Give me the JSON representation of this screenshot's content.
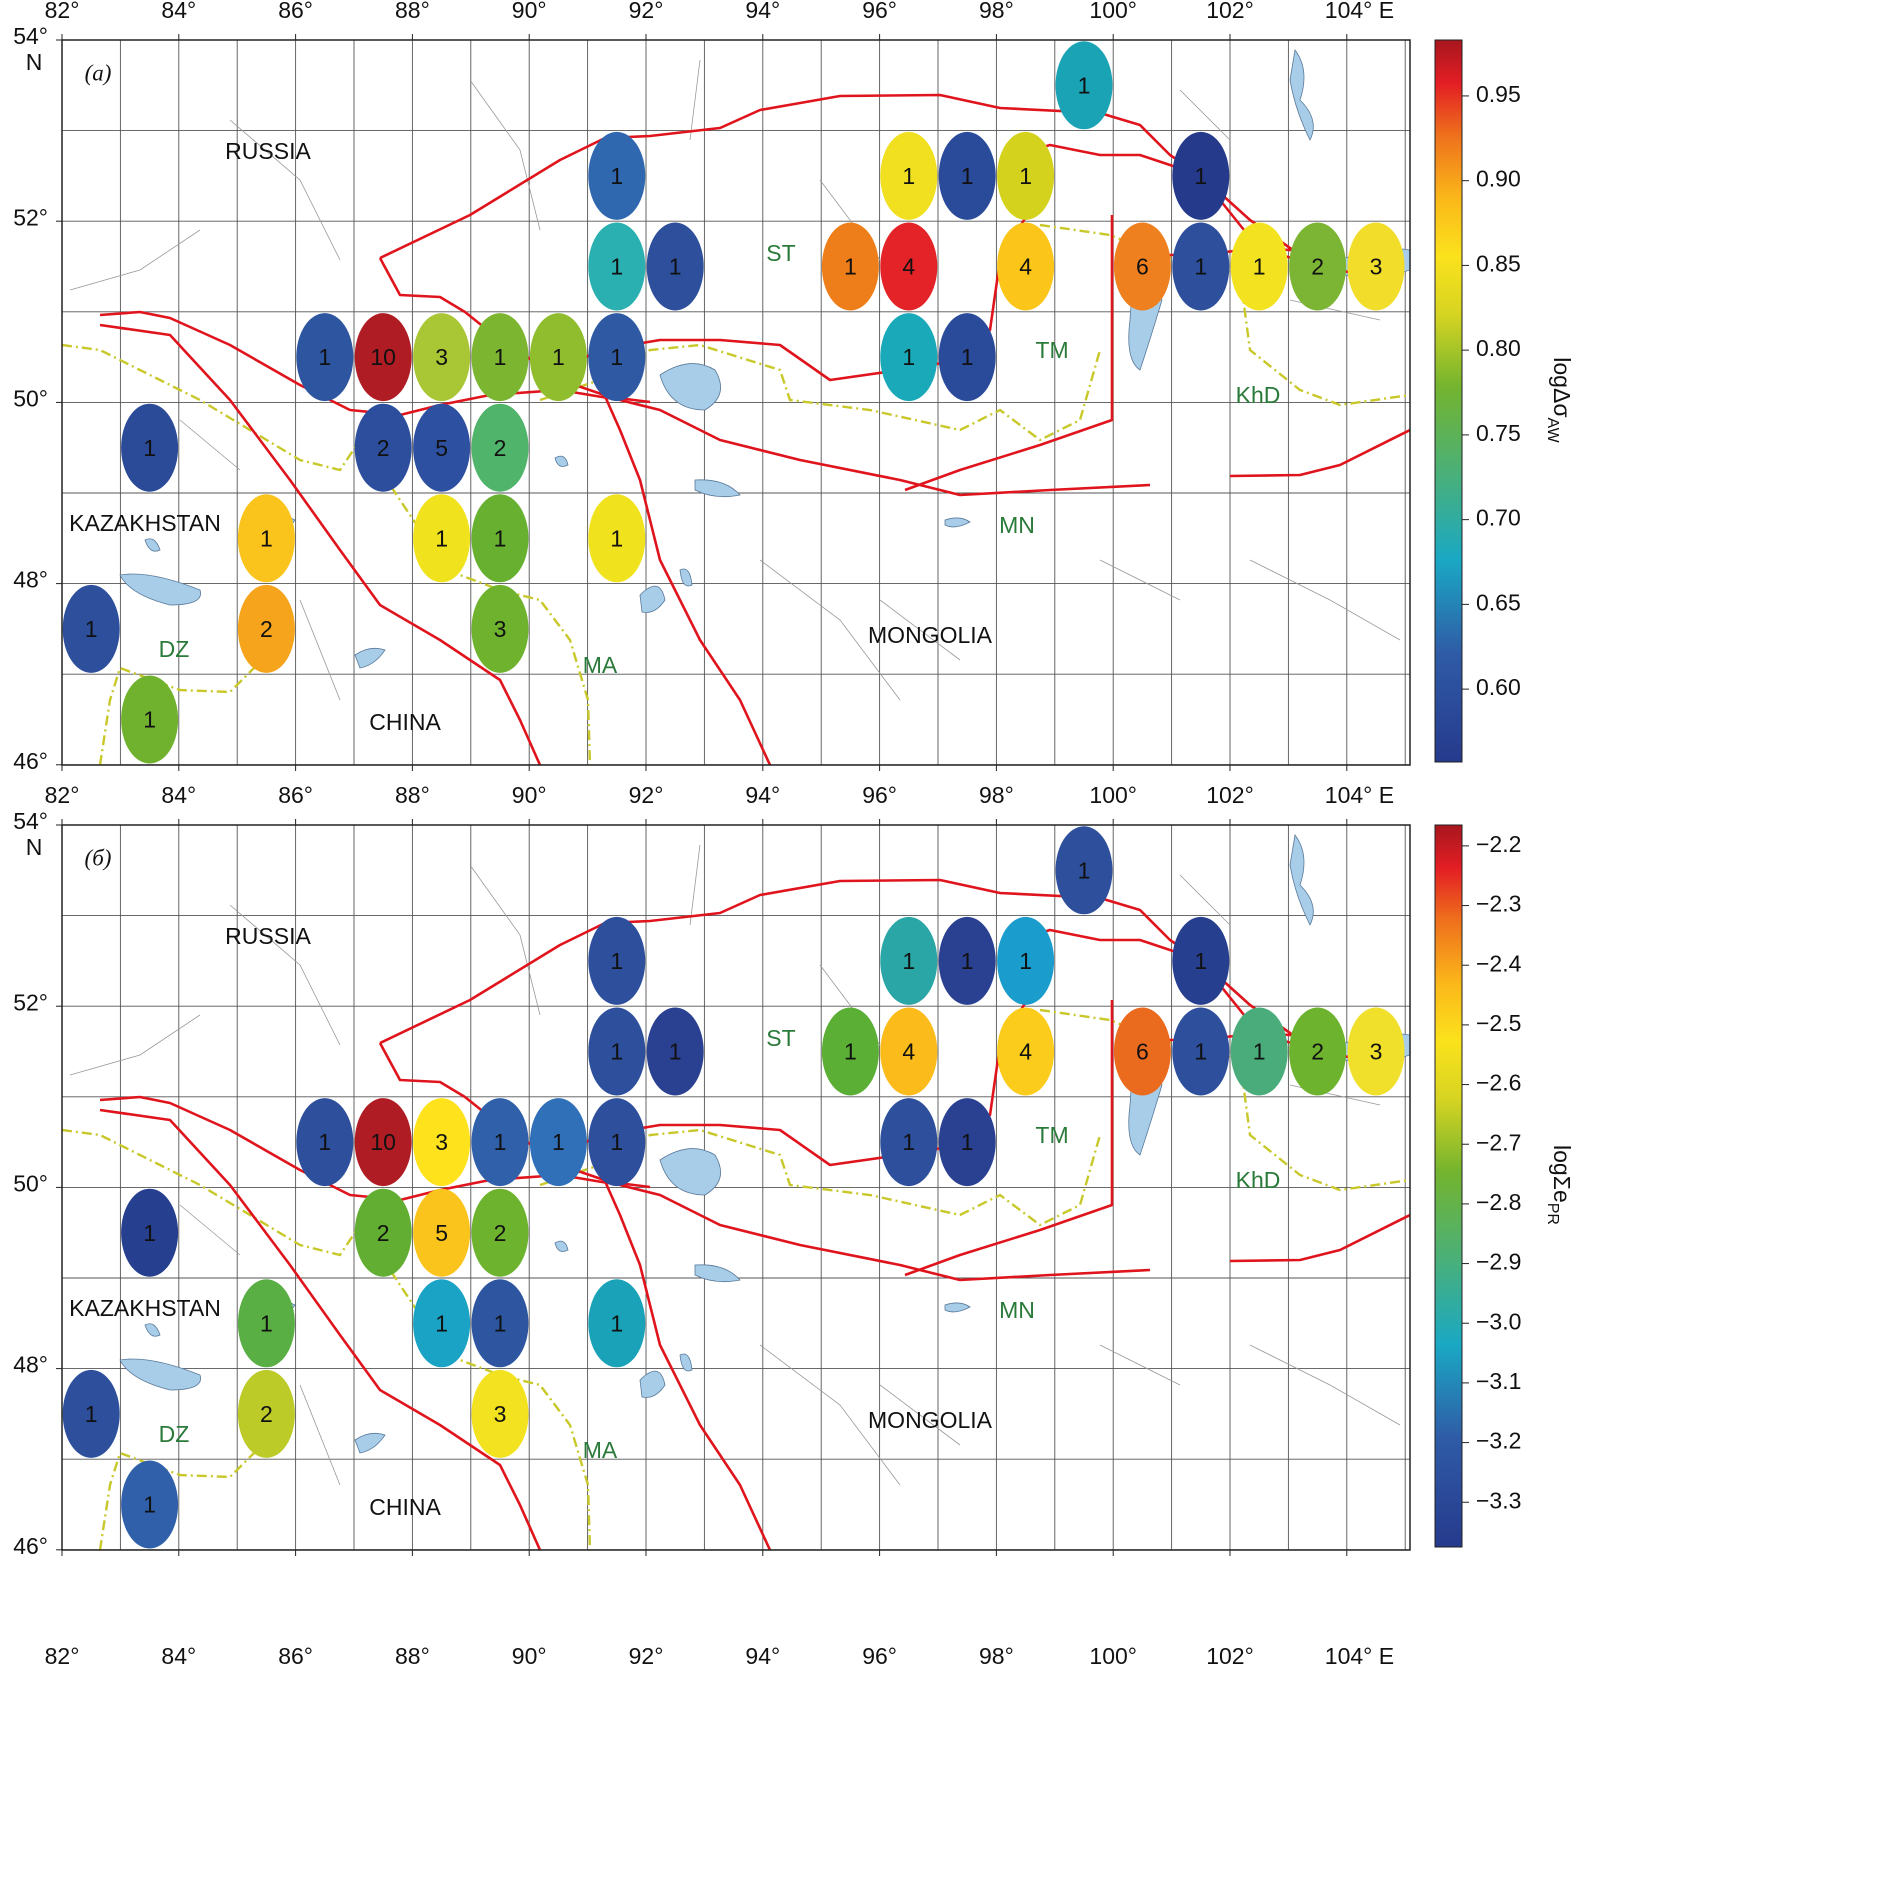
{
  "axes": {
    "lon_ticks": [
      {
        "value": 82,
        "label": "82°"
      },
      {
        "value": 84,
        "label": "84°"
      },
      {
        "value": 86,
        "label": "86°"
      },
      {
        "value": 88,
        "label": "88°"
      },
      {
        "value": 90,
        "label": "90°"
      },
      {
        "value": 92,
        "label": "92°"
      },
      {
        "value": 94,
        "label": "94°"
      },
      {
        "value": 96,
        "label": "96°"
      },
      {
        "value": 98,
        "label": "98°"
      },
      {
        "value": 100,
        "label": "100°"
      },
      {
        "value": 102,
        "label": "102°"
      },
      {
        "value": 104,
        "label": "104° E"
      }
    ],
    "lat_ticks": [
      {
        "value": 46,
        "label": "46°"
      },
      {
        "value": 48,
        "label": "48°"
      },
      {
        "value": 50,
        "label": "50°"
      },
      {
        "value": 52,
        "label": "52°"
      },
      {
        "value": 54,
        "label": "54°"
      }
    ],
    "north": "N"
  },
  "places": [
    "RUSSIA",
    "KAZAKHSTAN",
    "CHINA",
    "MONGOLIA"
  ],
  "regions": [
    "ST",
    "TM",
    "KhD",
    "MN",
    "DZ",
    "MA"
  ],
  "panels": [
    {
      "label": "(a)",
      "colorbar": {
        "title": "logΔσ",
        "subscript": "AW",
        "lim": [
          0.557,
          0.983
        ],
        "ticks": [
          {
            "value": 0.6,
            "label": "0.60"
          },
          {
            "value": 0.65,
            "label": "0.65"
          },
          {
            "value": 0.7,
            "label": "0.70"
          },
          {
            "value": 0.75,
            "label": "0.75"
          },
          {
            "value": 0.8,
            "label": "0.80"
          },
          {
            "value": 0.85,
            "label": "0.85"
          },
          {
            "value": 0.9,
            "label": "0.90"
          },
          {
            "value": 0.95,
            "label": "0.95"
          }
        ]
      },
      "cells": [
        {
          "lon": 99.5,
          "lat": 53.5,
          "count": 1,
          "color": "#1aa3b5"
        },
        {
          "lon": 91.5,
          "lat": 52.5,
          "count": 1,
          "color": "#3068b0"
        },
        {
          "lon": 96.5,
          "lat": 52.5,
          "count": 1,
          "color": "#f0e020"
        },
        {
          "lon": 97.5,
          "lat": 52.5,
          "count": 1,
          "color": "#2a4a9a"
        },
        {
          "lon": 98.5,
          "lat": 52.5,
          "count": 1,
          "color": "#d4d21c"
        },
        {
          "lon": 101.5,
          "lat": 52.5,
          "count": 1,
          "color": "#253a8a"
        },
        {
          "lon": 91.5,
          "lat": 51.5,
          "count": 1,
          "color": "#2ab0b0"
        },
        {
          "lon": 92.5,
          "lat": 51.5,
          "count": 1,
          "color": "#2d4f9c"
        },
        {
          "lon": 95.5,
          "lat": 51.5,
          "count": 1,
          "color": "#ee7e1a"
        },
        {
          "lon": 96.5,
          "lat": 51.5,
          "count": 4,
          "color": "#e42328"
        },
        {
          "lon": 98.5,
          "lat": 51.5,
          "count": 4,
          "color": "#fbc51a"
        },
        {
          "lon": 100.5,
          "lat": 51.5,
          "count": 6,
          "color": "#ee8020"
        },
        {
          "lon": 101.5,
          "lat": 51.5,
          "count": 1,
          "color": "#2d4f9c"
        },
        {
          "lon": 102.5,
          "lat": 51.5,
          "count": 1,
          "color": "#f3e21f"
        },
        {
          "lon": 103.5,
          "lat": 51.5,
          "count": 2,
          "color": "#7cb534"
        },
        {
          "lon": 104.5,
          "lat": 51.5,
          "count": 3,
          "color": "#f1dd2a"
        },
        {
          "lon": 86.5,
          "lat": 50.5,
          "count": 1,
          "color": "#2d55a0"
        },
        {
          "lon": 87.5,
          "lat": 50.5,
          "count": 10,
          "color": "#b01c24"
        },
        {
          "lon": 88.5,
          "lat": 50.5,
          "count": 3,
          "color": "#a9c634"
        },
        {
          "lon": 89.5,
          "lat": 50.5,
          "count": 1,
          "color": "#7cb530"
        },
        {
          "lon": 90.5,
          "lat": 50.5,
          "count": 1,
          "color": "#8fbd2e"
        },
        {
          "lon": 91.5,
          "lat": 50.5,
          "count": 1,
          "color": "#2f5aa3"
        },
        {
          "lon": 96.5,
          "lat": 50.5,
          "count": 1,
          "color": "#1aa9b8"
        },
        {
          "lon": 97.5,
          "lat": 50.5,
          "count": 1,
          "color": "#2a4a9a"
        },
        {
          "lon": 83.5,
          "lat": 49.5,
          "count": 1,
          "color": "#2b4a98"
        },
        {
          "lon": 87.5,
          "lat": 49.5,
          "count": 2,
          "color": "#2c4e9c"
        },
        {
          "lon": 88.5,
          "lat": 49.5,
          "count": 5,
          "color": "#2d50a0"
        },
        {
          "lon": 89.5,
          "lat": 49.5,
          "count": 2,
          "color": "#50b46a"
        },
        {
          "lon": 85.5,
          "lat": 48.5,
          "count": 1,
          "color": "#fbc41c"
        },
        {
          "lon": 88.5,
          "lat": 48.5,
          "count": 1,
          "color": "#f0e21c"
        },
        {
          "lon": 89.5,
          "lat": 48.5,
          "count": 1,
          "color": "#68b030"
        },
        {
          "lon": 91.5,
          "lat": 48.5,
          "count": 1,
          "color": "#f0e21c"
        },
        {
          "lon": 82.5,
          "lat": 47.5,
          "count": 1,
          "color": "#2d4f9c"
        },
        {
          "lon": 85.5,
          "lat": 47.5,
          "count": 2,
          "color": "#f6a41c"
        },
        {
          "lon": 89.5,
          "lat": 47.5,
          "count": 3,
          "color": "#6fb22e"
        },
        {
          "lon": 83.5,
          "lat": 46.5,
          "count": 1,
          "color": "#70b22e"
        }
      ]
    },
    {
      "label": "(б)",
      "colorbar": {
        "title": "logΣe",
        "subscript": "PR",
        "lim": [
          -3.375,
          -2.165
        ],
        "ticks": [
          {
            "value": -3.3,
            "label": "−3.3"
          },
          {
            "value": -3.2,
            "label": "−3.2"
          },
          {
            "value": -3.1,
            "label": "−3.1"
          },
          {
            "value": -3.0,
            "label": "−3.0"
          },
          {
            "value": -2.9,
            "label": "−2.9"
          },
          {
            "value": -2.8,
            "label": "−2.8"
          },
          {
            "value": -2.7,
            "label": "−2.7"
          },
          {
            "value": -2.6,
            "label": "−2.6"
          },
          {
            "value": -2.5,
            "label": "−2.5"
          },
          {
            "value": -2.4,
            "label": "−2.4"
          },
          {
            "value": -2.3,
            "label": "−2.3"
          },
          {
            "value": -2.2,
            "label": "−2.2"
          }
        ]
      },
      "cells": [
        {
          "lon": 99.5,
          "lat": 53.5,
          "count": 1,
          "color": "#2d4f9c"
        },
        {
          "lon": 91.5,
          "lat": 52.5,
          "count": 1,
          "color": "#2d4f9c"
        },
        {
          "lon": 96.5,
          "lat": 52.5,
          "count": 1,
          "color": "#2aa6a6"
        },
        {
          "lon": 97.5,
          "lat": 52.5,
          "count": 1,
          "color": "#2a4090"
        },
        {
          "lon": 98.5,
          "lat": 52.5,
          "count": 1,
          "color": "#1a9ccc"
        },
        {
          "lon": 101.5,
          "lat": 52.5,
          "count": 1,
          "color": "#263f8e"
        },
        {
          "lon": 91.5,
          "lat": 51.5,
          "count": 1,
          "color": "#2d4f9c"
        },
        {
          "lon": 92.5,
          "lat": 51.5,
          "count": 1,
          "color": "#2a4090"
        },
        {
          "lon": 95.5,
          "lat": 51.5,
          "count": 1,
          "color": "#5aaf34"
        },
        {
          "lon": 96.5,
          "lat": 51.5,
          "count": 4,
          "color": "#fbbb1a"
        },
        {
          "lon": 98.5,
          "lat": 51.5,
          "count": 4,
          "color": "#fbcc1c"
        },
        {
          "lon": 100.5,
          "lat": 51.5,
          "count": 6,
          "color": "#ea6a1e"
        },
        {
          "lon": 101.5,
          "lat": 51.5,
          "count": 1,
          "color": "#2d4f9c"
        },
        {
          "lon": 102.5,
          "lat": 51.5,
          "count": 1,
          "color": "#4aac7a"
        },
        {
          "lon": 103.5,
          "lat": 51.5,
          "count": 2,
          "color": "#6db32e"
        },
        {
          "lon": 104.5,
          "lat": 51.5,
          "count": 3,
          "color": "#f0e02c"
        },
        {
          "lon": 86.5,
          "lat": 50.5,
          "count": 1,
          "color": "#2d4f9c"
        },
        {
          "lon": 87.5,
          "lat": 50.5,
          "count": 10,
          "color": "#b01c24"
        },
        {
          "lon": 88.5,
          "lat": 50.5,
          "count": 3,
          "color": "#fde21c"
        },
        {
          "lon": 89.5,
          "lat": 50.5,
          "count": 1,
          "color": "#3060aa"
        },
        {
          "lon": 90.5,
          "lat": 50.5,
          "count": 1,
          "color": "#3070b8"
        },
        {
          "lon": 91.5,
          "lat": 50.5,
          "count": 1,
          "color": "#2d4f9c"
        },
        {
          "lon": 96.5,
          "lat": 50.5,
          "count": 1,
          "color": "#2d4f9c"
        },
        {
          "lon": 97.5,
          "lat": 50.5,
          "count": 1,
          "color": "#2a4090"
        },
        {
          "lon": 83.5,
          "lat": 49.5,
          "count": 1,
          "color": "#263f8e"
        },
        {
          "lon": 87.5,
          "lat": 49.5,
          "count": 2,
          "color": "#62ae32"
        },
        {
          "lon": 88.5,
          "lat": 49.5,
          "count": 5,
          "color": "#fbc41c"
        },
        {
          "lon": 89.5,
          "lat": 49.5,
          "count": 2,
          "color": "#6eb32e"
        },
        {
          "lon": 85.5,
          "lat": 48.5,
          "count": 1,
          "color": "#5aaf44"
        },
        {
          "lon": 88.5,
          "lat": 48.5,
          "count": 1,
          "color": "#1aa3c4"
        },
        {
          "lon": 89.5,
          "lat": 48.5,
          "count": 1,
          "color": "#2d55a0"
        },
        {
          "lon": 91.5,
          "lat": 48.5,
          "count": 1,
          "color": "#1aa3b8"
        },
        {
          "lon": 82.5,
          "lat": 47.5,
          "count": 1,
          "color": "#2d4f9c"
        },
        {
          "lon": 85.5,
          "lat": 47.5,
          "count": 2,
          "color": "#bccb28"
        },
        {
          "lon": 89.5,
          "lat": 47.5,
          "count": 3,
          "color": "#f3e21f"
        },
        {
          "lon": 83.5,
          "lat": 46.5,
          "count": 1,
          "color": "#3060aa"
        }
      ]
    }
  ]
}
